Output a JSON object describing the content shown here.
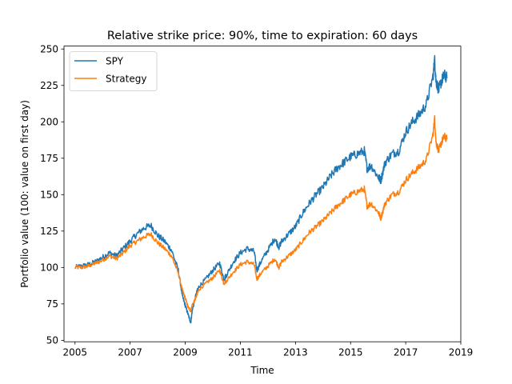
{
  "chart_data": {
    "type": "line",
    "title": "Relative strike price: 90%, time to expiration: 60 days",
    "xlabel": "Time",
    "ylabel": "Portfolio value (100: value on first day)",
    "xlim": [
      2004.6,
      2019.0
    ],
    "ylim": [
      49,
      252
    ],
    "xticks": [
      2005,
      2007,
      2009,
      2011,
      2013,
      2015,
      2017,
      2019
    ],
    "xtick_labels": [
      "2005",
      "2007",
      "2009",
      "2011",
      "2013",
      "2015",
      "2017",
      "2019"
    ],
    "yticks": [
      50,
      75,
      100,
      125,
      150,
      175,
      200,
      225,
      250
    ],
    "ytick_labels": [
      "50",
      "75",
      "100",
      "125",
      "150",
      "175",
      "200",
      "225",
      "250"
    ],
    "grid": false,
    "legend_position": "top-left",
    "series": [
      {
        "name": "SPY",
        "color": "#1f77b4",
        "x": [
          2005.0,
          2005.25,
          2005.5,
          2005.75,
          2006.0,
          2006.25,
          2006.5,
          2006.75,
          2007.0,
          2007.25,
          2007.5,
          2007.75,
          2008.0,
          2008.25,
          2008.5,
          2008.75,
          2008.9,
          2009.0,
          2009.1,
          2009.2,
          2009.25,
          2009.4,
          2009.5,
          2009.75,
          2010.0,
          2010.25,
          2010.4,
          2010.5,
          2010.75,
          2011.0,
          2011.25,
          2011.5,
          2011.6,
          2011.75,
          2012.0,
          2012.25,
          2012.4,
          2012.5,
          2012.75,
          2013.0,
          2013.25,
          2013.5,
          2013.75,
          2014.0,
          2014.25,
          2014.5,
          2014.75,
          2015.0,
          2015.25,
          2015.5,
          2015.6,
          2015.75,
          2016.0,
          2016.1,
          2016.25,
          2016.5,
          2016.75,
          2017.0,
          2017.25,
          2017.5,
          2017.75,
          2018.0,
          2018.05,
          2018.1,
          2018.2,
          2018.3,
          2018.4,
          2018.5
        ],
        "values": [
          100,
          101,
          102,
          104,
          107,
          110,
          108,
          113,
          118,
          123,
          127,
          129,
          122,
          118,
          112,
          98,
          80,
          74,
          68,
          62,
          70,
          82,
          87,
          92,
          98,
          103,
          92,
          95,
          104,
          110,
          113,
          111,
          98,
          104,
          112,
          120,
          114,
          118,
          123,
          128,
          137,
          144,
          150,
          155,
          162,
          168,
          172,
          176,
          178,
          180,
          168,
          170,
          162,
          160,
          172,
          178,
          180,
          193,
          200,
          205,
          212,
          232,
          243,
          228,
          222,
          228,
          232,
          230
        ]
      },
      {
        "name": "Strategy",
        "color": "#ff7f0e",
        "x": [
          2005.0,
          2005.25,
          2005.5,
          2005.75,
          2006.0,
          2006.25,
          2006.5,
          2006.75,
          2007.0,
          2007.25,
          2007.5,
          2007.75,
          2008.0,
          2008.25,
          2008.5,
          2008.75,
          2008.9,
          2009.0,
          2009.1,
          2009.2,
          2009.25,
          2009.4,
          2009.5,
          2009.75,
          2010.0,
          2010.25,
          2010.4,
          2010.5,
          2010.75,
          2011.0,
          2011.25,
          2011.5,
          2011.6,
          2011.75,
          2012.0,
          2012.25,
          2012.4,
          2012.5,
          2012.75,
          2013.0,
          2013.25,
          2013.5,
          2013.75,
          2014.0,
          2014.25,
          2014.5,
          2014.75,
          2015.0,
          2015.25,
          2015.5,
          2015.6,
          2015.75,
          2016.0,
          2016.1,
          2016.25,
          2016.5,
          2016.75,
          2017.0,
          2017.25,
          2017.5,
          2017.75,
          2018.0,
          2018.05,
          2018.1,
          2018.2,
          2018.3,
          2018.4,
          2018.5
        ],
        "values": [
          100,
          100,
          101,
          103,
          105,
          108,
          106,
          110,
          115,
          118,
          121,
          123,
          117,
          113,
          108,
          96,
          84,
          79,
          73,
          70,
          74,
          80,
          85,
          89,
          93,
          98,
          89,
          91,
          97,
          102,
          104,
          102,
          92,
          96,
          101,
          106,
          100,
          104,
          108,
          112,
          118,
          124,
          128,
          132,
          137,
          142,
          146,
          150,
          152,
          154,
          142,
          144,
          138,
          134,
          144,
          150,
          152,
          160,
          165,
          169,
          174,
          192,
          203,
          186,
          180,
          186,
          190,
          188
        ]
      }
    ]
  }
}
